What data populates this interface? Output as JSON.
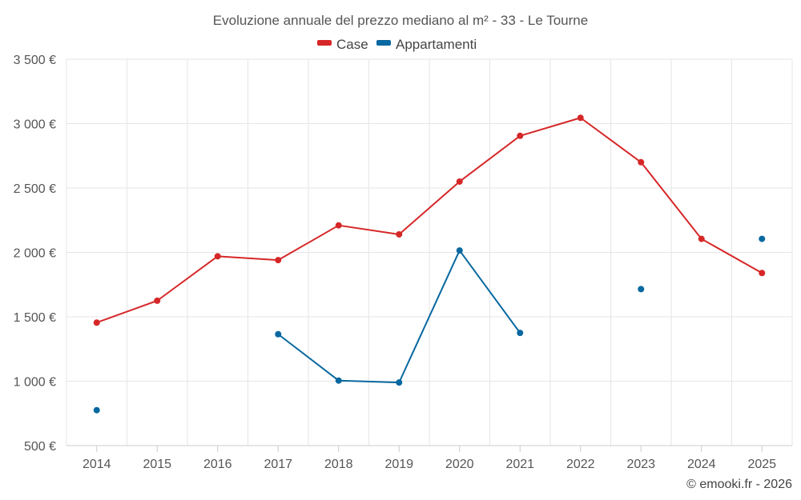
{
  "chart_data": {
    "type": "line",
    "title": "Evoluzione annuale del prezzo mediano al m² - 33 - Le Tourne",
    "categories": [
      "2014",
      "2015",
      "2016",
      "2017",
      "2018",
      "2019",
      "2020",
      "2021",
      "2022",
      "2023",
      "2024",
      "2025"
    ],
    "y_tick_labels": [
      "500 €",
      "1 000 €",
      "1 500 €",
      "2 000 €",
      "2 500 €",
      "3 000 €",
      "3 500 €"
    ],
    "y_ticks": [
      500,
      1000,
      1500,
      2000,
      2500,
      3000,
      3500
    ],
    "ylim": [
      500,
      3500
    ],
    "grid": true,
    "legend_position": "top-center",
    "series": [
      {
        "name": "Case",
        "color": "#d62728",
        "values": [
          1455,
          1625,
          1970,
          1940,
          2210,
          2140,
          2550,
          2905,
          3045,
          2700,
          2105,
          1840
        ]
      },
      {
        "name": "Appartamenti",
        "color": "#0868a0",
        "values": [
          775,
          null,
          null,
          1365,
          1005,
          990,
          2015,
          1375,
          null,
          1715,
          null,
          2105
        ]
      }
    ],
    "credit": "© emooki.fr - 2026"
  }
}
